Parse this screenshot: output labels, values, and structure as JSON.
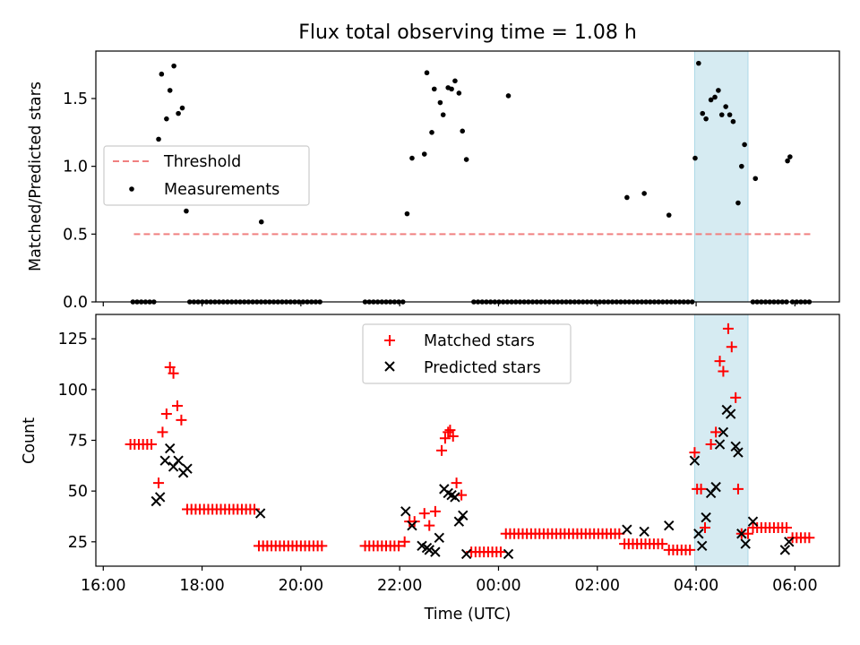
{
  "chart_data": {
    "title": "Flux total observing time = 1.08 h",
    "xlabel": "Time (UTC)",
    "x_unit": "hours since 16:00 UTC",
    "xlim": [
      -0.15,
      14.9
    ],
    "x_ticks": [
      {
        "v": 0,
        "label": "16:00"
      },
      {
        "v": 2,
        "label": "18:00"
      },
      {
        "v": 4,
        "label": "20:00"
      },
      {
        "v": 6,
        "label": "22:00"
      },
      {
        "v": 8,
        "label": "00:00"
      },
      {
        "v": 10,
        "label": "02:00"
      },
      {
        "v": 12,
        "label": "04:00"
      },
      {
        "v": 14,
        "label": "06:00"
      }
    ],
    "highlight": {
      "x0": 11.97,
      "x1": 13.05,
      "color": "#add8e6"
    },
    "top": {
      "type": "scatter",
      "ylabel": "Matched/Predicted stars",
      "ylim": [
        0,
        1.85
      ],
      "y_ticks": [
        {
          "v": 0,
          "label": "0.0"
        },
        {
          "v": 0.5,
          "label": "0.5"
        },
        {
          "v": 1.0,
          "label": "1.0"
        },
        {
          "v": 1.5,
          "label": "1.5"
        }
      ],
      "threshold": {
        "value": 0.5,
        "x0": 0.62,
        "x1": 14.38,
        "color": "#f08080",
        "label": "Threshold"
      },
      "measurements_label": "Measurements",
      "measurements": [
        [
          1.12,
          1.2
        ],
        [
          1.18,
          1.68
        ],
        [
          1.28,
          1.35
        ],
        [
          1.35,
          1.56
        ],
        [
          1.43,
          1.74
        ],
        [
          1.52,
          1.39
        ],
        [
          1.6,
          1.43
        ],
        [
          1.68,
          0.67
        ],
        [
          3.2,
          0.59
        ],
        [
          6.15,
          0.65
        ],
        [
          6.25,
          1.06
        ],
        [
          6.5,
          1.09
        ],
        [
          6.55,
          1.69
        ],
        [
          6.65,
          1.25
        ],
        [
          6.7,
          1.57
        ],
        [
          6.82,
          1.47
        ],
        [
          6.88,
          1.38
        ],
        [
          6.98,
          1.58
        ],
        [
          7.05,
          1.57
        ],
        [
          7.12,
          1.63
        ],
        [
          7.2,
          1.54
        ],
        [
          7.27,
          1.26
        ],
        [
          7.35,
          1.05
        ],
        [
          8.2,
          1.52
        ],
        [
          10.6,
          0.77
        ],
        [
          10.95,
          0.8
        ],
        [
          11.45,
          0.64
        ],
        [
          11.98,
          1.06
        ],
        [
          12.05,
          1.76
        ],
        [
          12.13,
          1.39
        ],
        [
          12.2,
          1.35
        ],
        [
          12.3,
          1.49
        ],
        [
          12.38,
          1.51
        ],
        [
          12.45,
          1.56
        ],
        [
          12.52,
          1.38
        ],
        [
          12.6,
          1.44
        ],
        [
          12.68,
          1.38
        ],
        [
          12.75,
          1.33
        ],
        [
          12.85,
          0.73
        ],
        [
          12.92,
          1.0
        ],
        [
          12.98,
          1.16
        ],
        [
          13.2,
          0.91
        ],
        [
          13.85,
          1.04
        ],
        [
          13.9,
          1.07
        ]
      ],
      "zero_segments": [
        [
          0.6,
          1.05
        ],
        [
          1.75,
          4.45
        ],
        [
          5.3,
          6.1
        ],
        [
          7.5,
          11.92
        ],
        [
          13.15,
          13.85
        ],
        [
          13.95,
          14.35
        ]
      ],
      "zero_step": 0.085
    },
    "bottom": {
      "type": "scatter",
      "ylabel": "Count",
      "ylim": [
        13,
        137
      ],
      "y_ticks": [
        {
          "v": 25,
          "label": "25"
        },
        {
          "v": 50,
          "label": "50"
        },
        {
          "v": 75,
          "label": "75"
        },
        {
          "v": 100,
          "label": "100"
        },
        {
          "v": 125,
          "label": "125"
        }
      ],
      "series": [
        {
          "name": "Matched stars",
          "marker": "plus",
          "color": "#ff0000",
          "points": [
            [
              1.12,
              54
            ],
            [
              1.2,
              79
            ],
            [
              1.28,
              88
            ],
            [
              1.35,
              111
            ],
            [
              1.42,
              108
            ],
            [
              1.5,
              92
            ],
            [
              1.58,
              85
            ],
            [
              6.1,
              25
            ],
            [
              6.2,
              35
            ],
            [
              6.3,
              35
            ],
            [
              6.5,
              39
            ],
            [
              6.6,
              33
            ],
            [
              6.72,
              40
            ],
            [
              6.85,
              70
            ],
            [
              6.92,
              76
            ],
            [
              6.98,
              79
            ],
            [
              7.02,
              80
            ],
            [
              7.08,
              77
            ],
            [
              7.15,
              54
            ],
            [
              7.25,
              48
            ],
            [
              11.97,
              69
            ],
            [
              12.02,
              51
            ],
            [
              12.1,
              51
            ],
            [
              12.18,
              32
            ],
            [
              12.3,
              73
            ],
            [
              12.4,
              79
            ],
            [
              12.48,
              114
            ],
            [
              12.55,
              109
            ],
            [
              12.65,
              130
            ],
            [
              12.72,
              121
            ],
            [
              12.8,
              96
            ],
            [
              12.85,
              51
            ],
            [
              12.92,
              29
            ],
            [
              13.05,
              29
            ]
          ],
          "runs": [
            [
              0.55,
              1.05,
              73
            ],
            [
              1.7,
              3.1,
              41
            ],
            [
              3.15,
              4.45,
              23
            ],
            [
              5.3,
              6.0,
              23
            ],
            [
              7.45,
              8.1,
              20
            ],
            [
              8.15,
              10.5,
              29
            ],
            [
              10.55,
              11.35,
              24
            ],
            [
              11.45,
              11.9,
              21
            ],
            [
              13.15,
              13.85,
              32
            ],
            [
              13.95,
              14.35,
              27
            ]
          ],
          "run_step": 0.085
        },
        {
          "name": "Predicted stars",
          "marker": "x",
          "color": "#000000",
          "points": [
            [
              1.07,
              45
            ],
            [
              1.15,
              47
            ],
            [
              1.25,
              65
            ],
            [
              1.35,
              71
            ],
            [
              1.42,
              62
            ],
            [
              1.52,
              65
            ],
            [
              1.62,
              59
            ],
            [
              1.7,
              61
            ],
            [
              3.18,
              39
            ],
            [
              6.12,
              40
            ],
            [
              6.25,
              33
            ],
            [
              6.45,
              23
            ],
            [
              6.55,
              22
            ],
            [
              6.6,
              21
            ],
            [
              6.72,
              20
            ],
            [
              6.8,
              27
            ],
            [
              6.9,
              51
            ],
            [
              6.98,
              49
            ],
            [
              7.05,
              48
            ],
            [
              7.12,
              47
            ],
            [
              7.2,
              35
            ],
            [
              7.28,
              38
            ],
            [
              7.35,
              19
            ],
            [
              8.2,
              19
            ],
            [
              10.6,
              31
            ],
            [
              10.95,
              30
            ],
            [
              11.45,
              33
            ],
            [
              11.97,
              65
            ],
            [
              12.05,
              29
            ],
            [
              12.12,
              23
            ],
            [
              12.2,
              37
            ],
            [
              12.3,
              49
            ],
            [
              12.4,
              52
            ],
            [
              12.48,
              73
            ],
            [
              12.55,
              79
            ],
            [
              12.62,
              90
            ],
            [
              12.7,
              88
            ],
            [
              12.8,
              72
            ],
            [
              12.85,
              69
            ],
            [
              12.92,
              29
            ],
            [
              13.0,
              24
            ],
            [
              13.15,
              35
            ],
            [
              13.8,
              21
            ],
            [
              13.88,
              25
            ]
          ]
        }
      ]
    }
  }
}
